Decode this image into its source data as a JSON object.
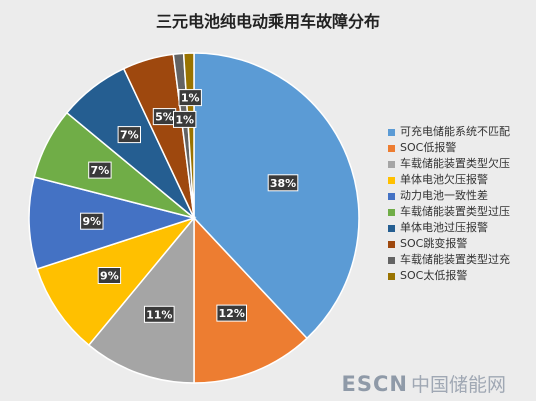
{
  "chart_data": {
    "type": "pie",
    "title": "三元电池纯电动乘用车故障分布",
    "categories": [
      "可充电储能系统不匹配",
      "SOC低报警",
      "车载储能装置类型欠压",
      "单体电池欠压报警",
      "动力电池一致性差",
      "车载储能装置类型过压",
      "单体电池过压报警",
      "SOC跳变报警",
      "车载储能装置类型过充",
      "SOC太低报警"
    ],
    "values": [
      38,
      12,
      11,
      9,
      9,
      7,
      7,
      5,
      1,
      1
    ],
    "data_labels": [
      "38%",
      "12%",
      "11%",
      "9%",
      "9%",
      "7%",
      "7%",
      "5%",
      "1%",
      "1%"
    ],
    "colors": [
      "#5b9bd5",
      "#ed7d31",
      "#a5a5a5",
      "#ffc000",
      "#4472c4",
      "#70ad47",
      "#255e91",
      "#9e480e",
      "#636363",
      "#997300"
    ],
    "legend_position": "right"
  },
  "watermark": {
    "brand": "ESCN",
    "name": "中国储能网"
  }
}
